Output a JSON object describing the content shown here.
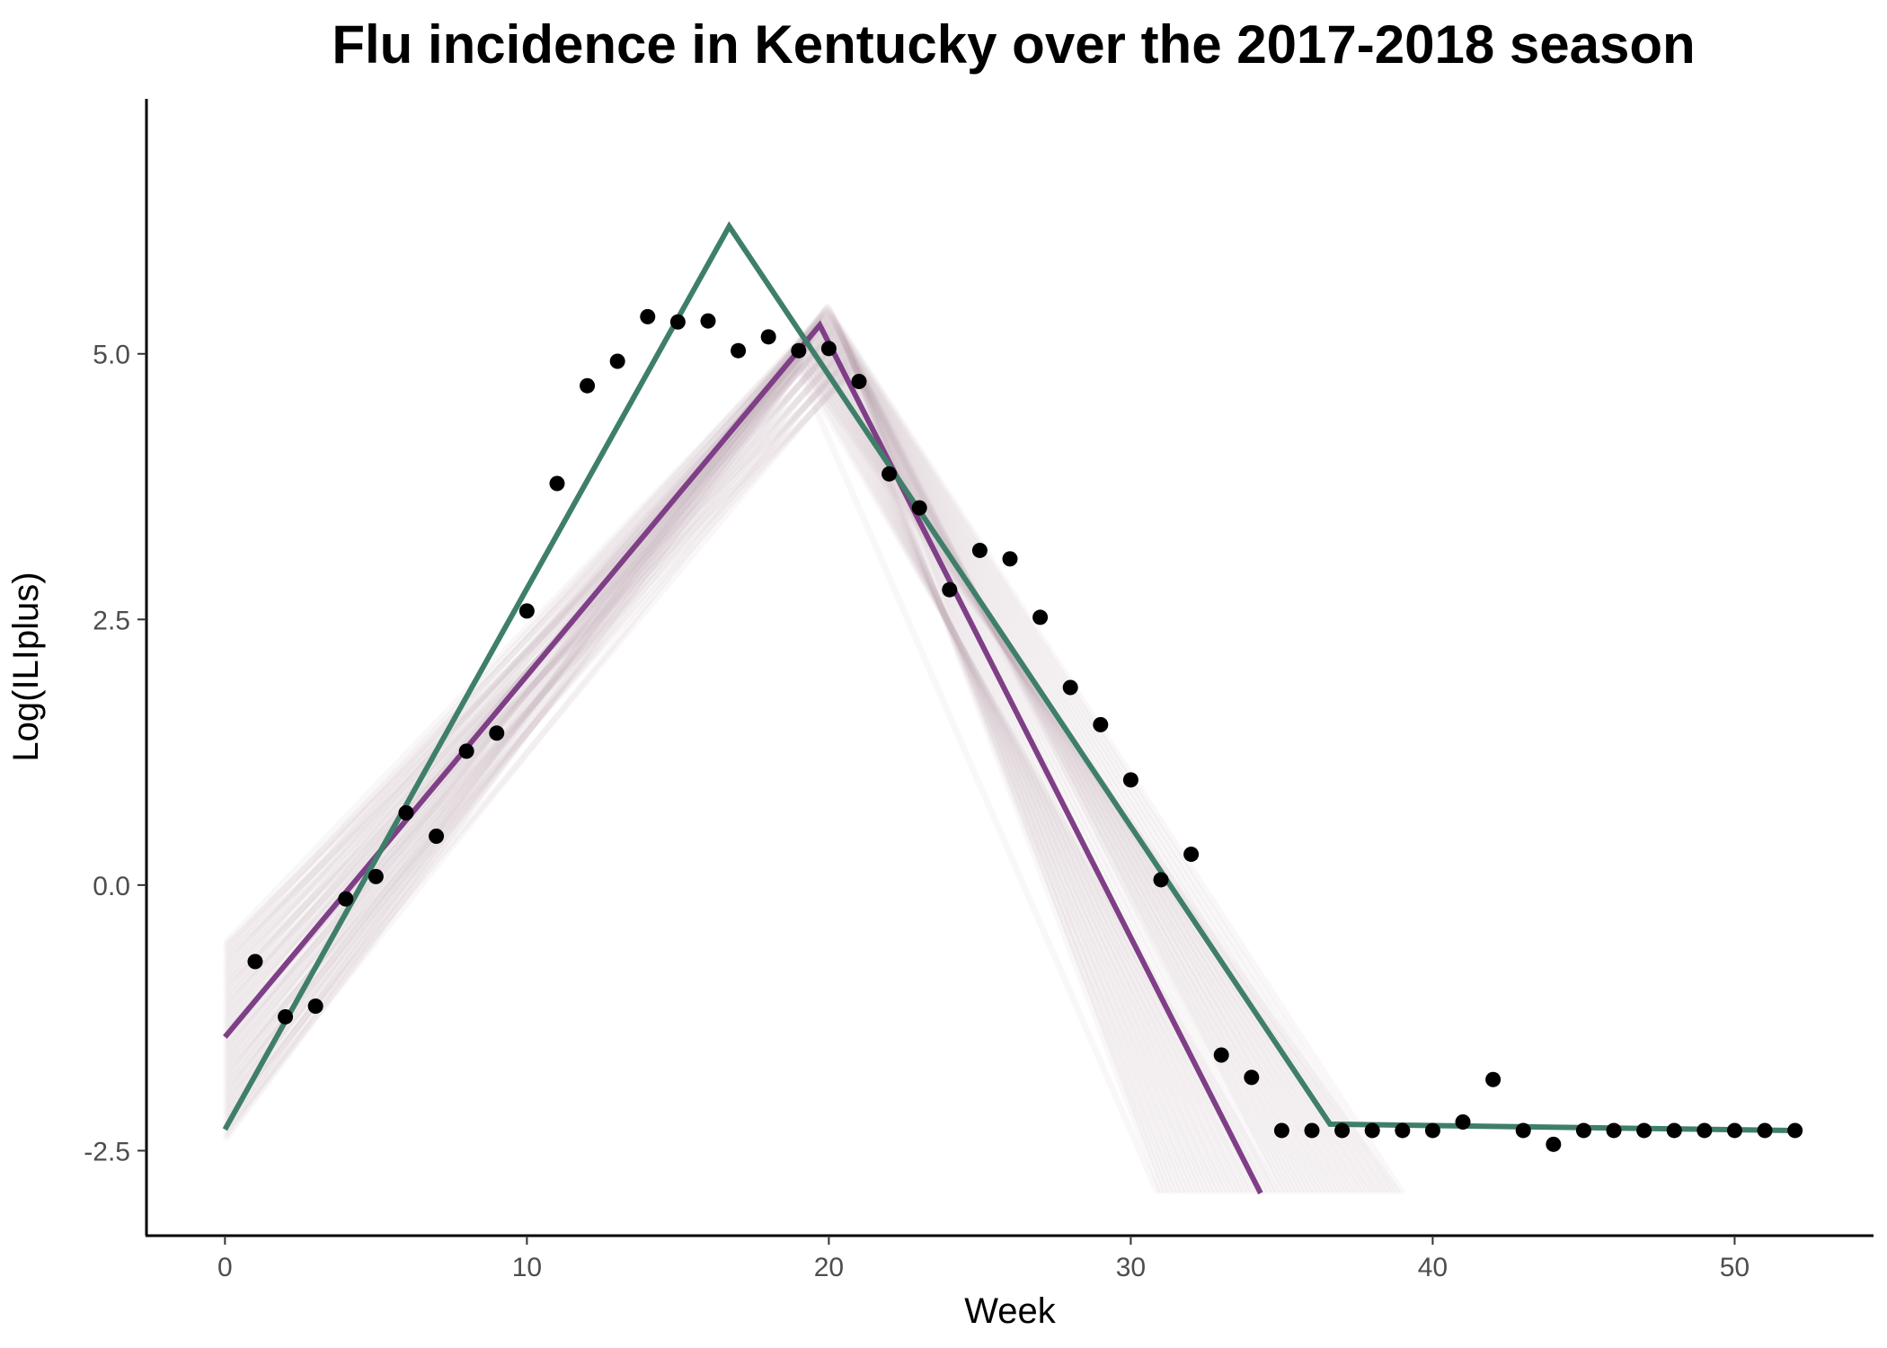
{
  "chart_data": {
    "type": "scatter",
    "title": "Flu incidence in Kentucky over the 2017-2018 season",
    "xlabel": "Week",
    "ylabel": "Log(ILIplus)",
    "xlim": [
      -2.6,
      54.6
    ],
    "ylim": [
      -3.3,
      7.4
    ],
    "x_ticks": [
      0,
      10,
      20,
      30,
      40,
      50
    ],
    "x_tick_labels": [
      "0",
      "10",
      "20",
      "30",
      "40",
      "50"
    ],
    "y_ticks": [
      -2.5,
      0.0,
      2.5,
      5.0
    ],
    "y_tick_labels": [
      "-2.5",
      "0.0",
      "2.5",
      "5.0"
    ],
    "grid": false,
    "legend": "none",
    "colors": {
      "points": "#000000",
      "purple_fit": "#7f3f86",
      "green_fit": "#3f7f6a",
      "posterior_samples": "#b8a9ad"
    },
    "points": {
      "x": [
        1,
        2,
        3,
        4,
        5,
        6,
        7,
        8,
        9,
        10,
        11,
        12,
        13,
        14,
        15,
        16,
        17,
        18,
        19,
        20,
        21,
        22,
        23,
        24,
        25,
        26,
        27,
        28,
        29,
        30,
        31,
        32,
        33,
        34,
        35,
        36,
        37,
        38,
        39,
        40,
        41,
        42,
        43,
        44,
        45,
        46,
        47,
        48,
        49,
        50,
        51,
        52
      ],
      "y": [
        -0.72,
        -1.24,
        -1.14,
        -0.13,
        0.08,
        0.68,
        0.46,
        1.26,
        1.43,
        2.58,
        3.78,
        4.7,
        4.93,
        5.35,
        5.3,
        5.31,
        5.03,
        5.16,
        5.03,
        5.05,
        4.74,
        3.87,
        3.55,
        2.78,
        3.15,
        3.07,
        2.52,
        1.86,
        1.51,
        0.99,
        0.05,
        0.29,
        -1.6,
        -1.81,
        -2.31,
        -2.31,
        -2.31,
        -2.31,
        -2.31,
        -2.31,
        -2.23,
        -1.83,
        -2.31,
        -2.44,
        -2.31,
        -2.31,
        -2.31,
        -2.31,
        -2.31,
        -2.31,
        -2.31,
        -2.31
      ]
    },
    "series": [
      {
        "x": [
          0,
          19.7,
          34.3
        ],
        "y": [
          -1.43,
          5.27,
          -2.9
        ]
      },
      {
        "x": [
          0,
          16.7,
          36.6,
          52
        ],
        "y": [
          -2.3,
          6.2,
          -2.25,
          -2.31
        ]
      }
    ],
    "posterior_band": {
      "count": 60,
      "start_y_range": [
        -2.4,
        -0.55
      ],
      "peak_x_range": [
        19.0,
        20.9
      ],
      "peak_y_range": [
        4.85,
        5.45
      ],
      "end_x_range": [
        30.9,
        39.0
      ],
      "end_y": -2.9
    }
  }
}
